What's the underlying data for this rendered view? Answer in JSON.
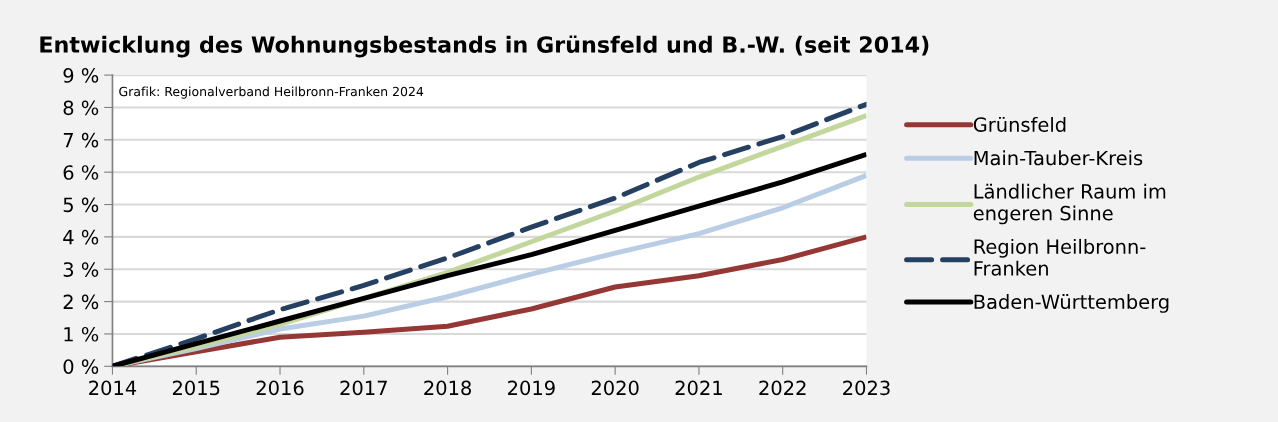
{
  "chart_data": {
    "type": "line",
    "title": "Entwicklung des Wohnungsbestands in Grünsfeld und B.-W. (seit 2014)",
    "x": [
      2014,
      2015,
      2016,
      2017,
      2018,
      2019,
      2020,
      2021,
      2022,
      2023
    ],
    "xlim": [
      2014,
      2023
    ],
    "xticks": [
      2014,
      2015,
      2016,
      2017,
      2018,
      2019,
      2020,
      2021,
      2022,
      2023
    ],
    "ylim": [
      0,
      9
    ],
    "yticks": [
      {
        "value": 0,
        "label": "0 %"
      },
      {
        "value": 1,
        "label": "1 %"
      },
      {
        "value": 2,
        "label": "2 %"
      },
      {
        "value": 3,
        "label": "3 %"
      },
      {
        "value": 4,
        "label": "4 %"
      },
      {
        "value": 5,
        "label": "5 %"
      },
      {
        "value": 6,
        "label": "6 %"
      },
      {
        "value": 7,
        "label": "7 %"
      },
      {
        "value": 8,
        "label": "8 %"
      },
      {
        "value": 9,
        "label": "9 %"
      }
    ],
    "grid": "y",
    "legend": "right",
    "marker": "none",
    "annotations": [
      "Grafik: Regionalverband Heilbronn-Franken 2024"
    ],
    "series": [
      {
        "name": "Grünsfeld",
        "color": "#953735",
        "line_style": "solid",
        "values": [
          0,
          0.45,
          0.9,
          1.05,
          1.24,
          1.77,
          2.45,
          2.8,
          3.3,
          4.0
        ]
      },
      {
        "name": "Main-Tauber-Kreis",
        "color": "#b9cde5",
        "line_style": "solid",
        "values": [
          0,
          0.55,
          1.15,
          1.55,
          2.15,
          2.85,
          3.5,
          4.1,
          4.9,
          5.9
        ]
      },
      {
        "name": "Ländlicher Raum im\nengeren Sinne",
        "color": "#c3d69b",
        "line_style": "solid",
        "values": [
          0,
          0.6,
          1.3,
          2.1,
          2.9,
          3.85,
          4.8,
          5.85,
          6.8,
          7.75
        ]
      },
      {
        "name": "Region Heilbronn-\nFranken",
        "color": "#254061",
        "line_style": "dashed",
        "values": [
          0,
          0.85,
          1.75,
          2.5,
          3.35,
          4.3,
          5.2,
          6.3,
          7.1,
          8.1
        ]
      },
      {
        "name": "Baden-Württemberg",
        "color": "#000000",
        "line_style": "solid",
        "values": [
          0,
          0.7,
          1.4,
          2.1,
          2.8,
          3.45,
          4.2,
          4.95,
          5.7,
          6.55
        ]
      }
    ]
  }
}
